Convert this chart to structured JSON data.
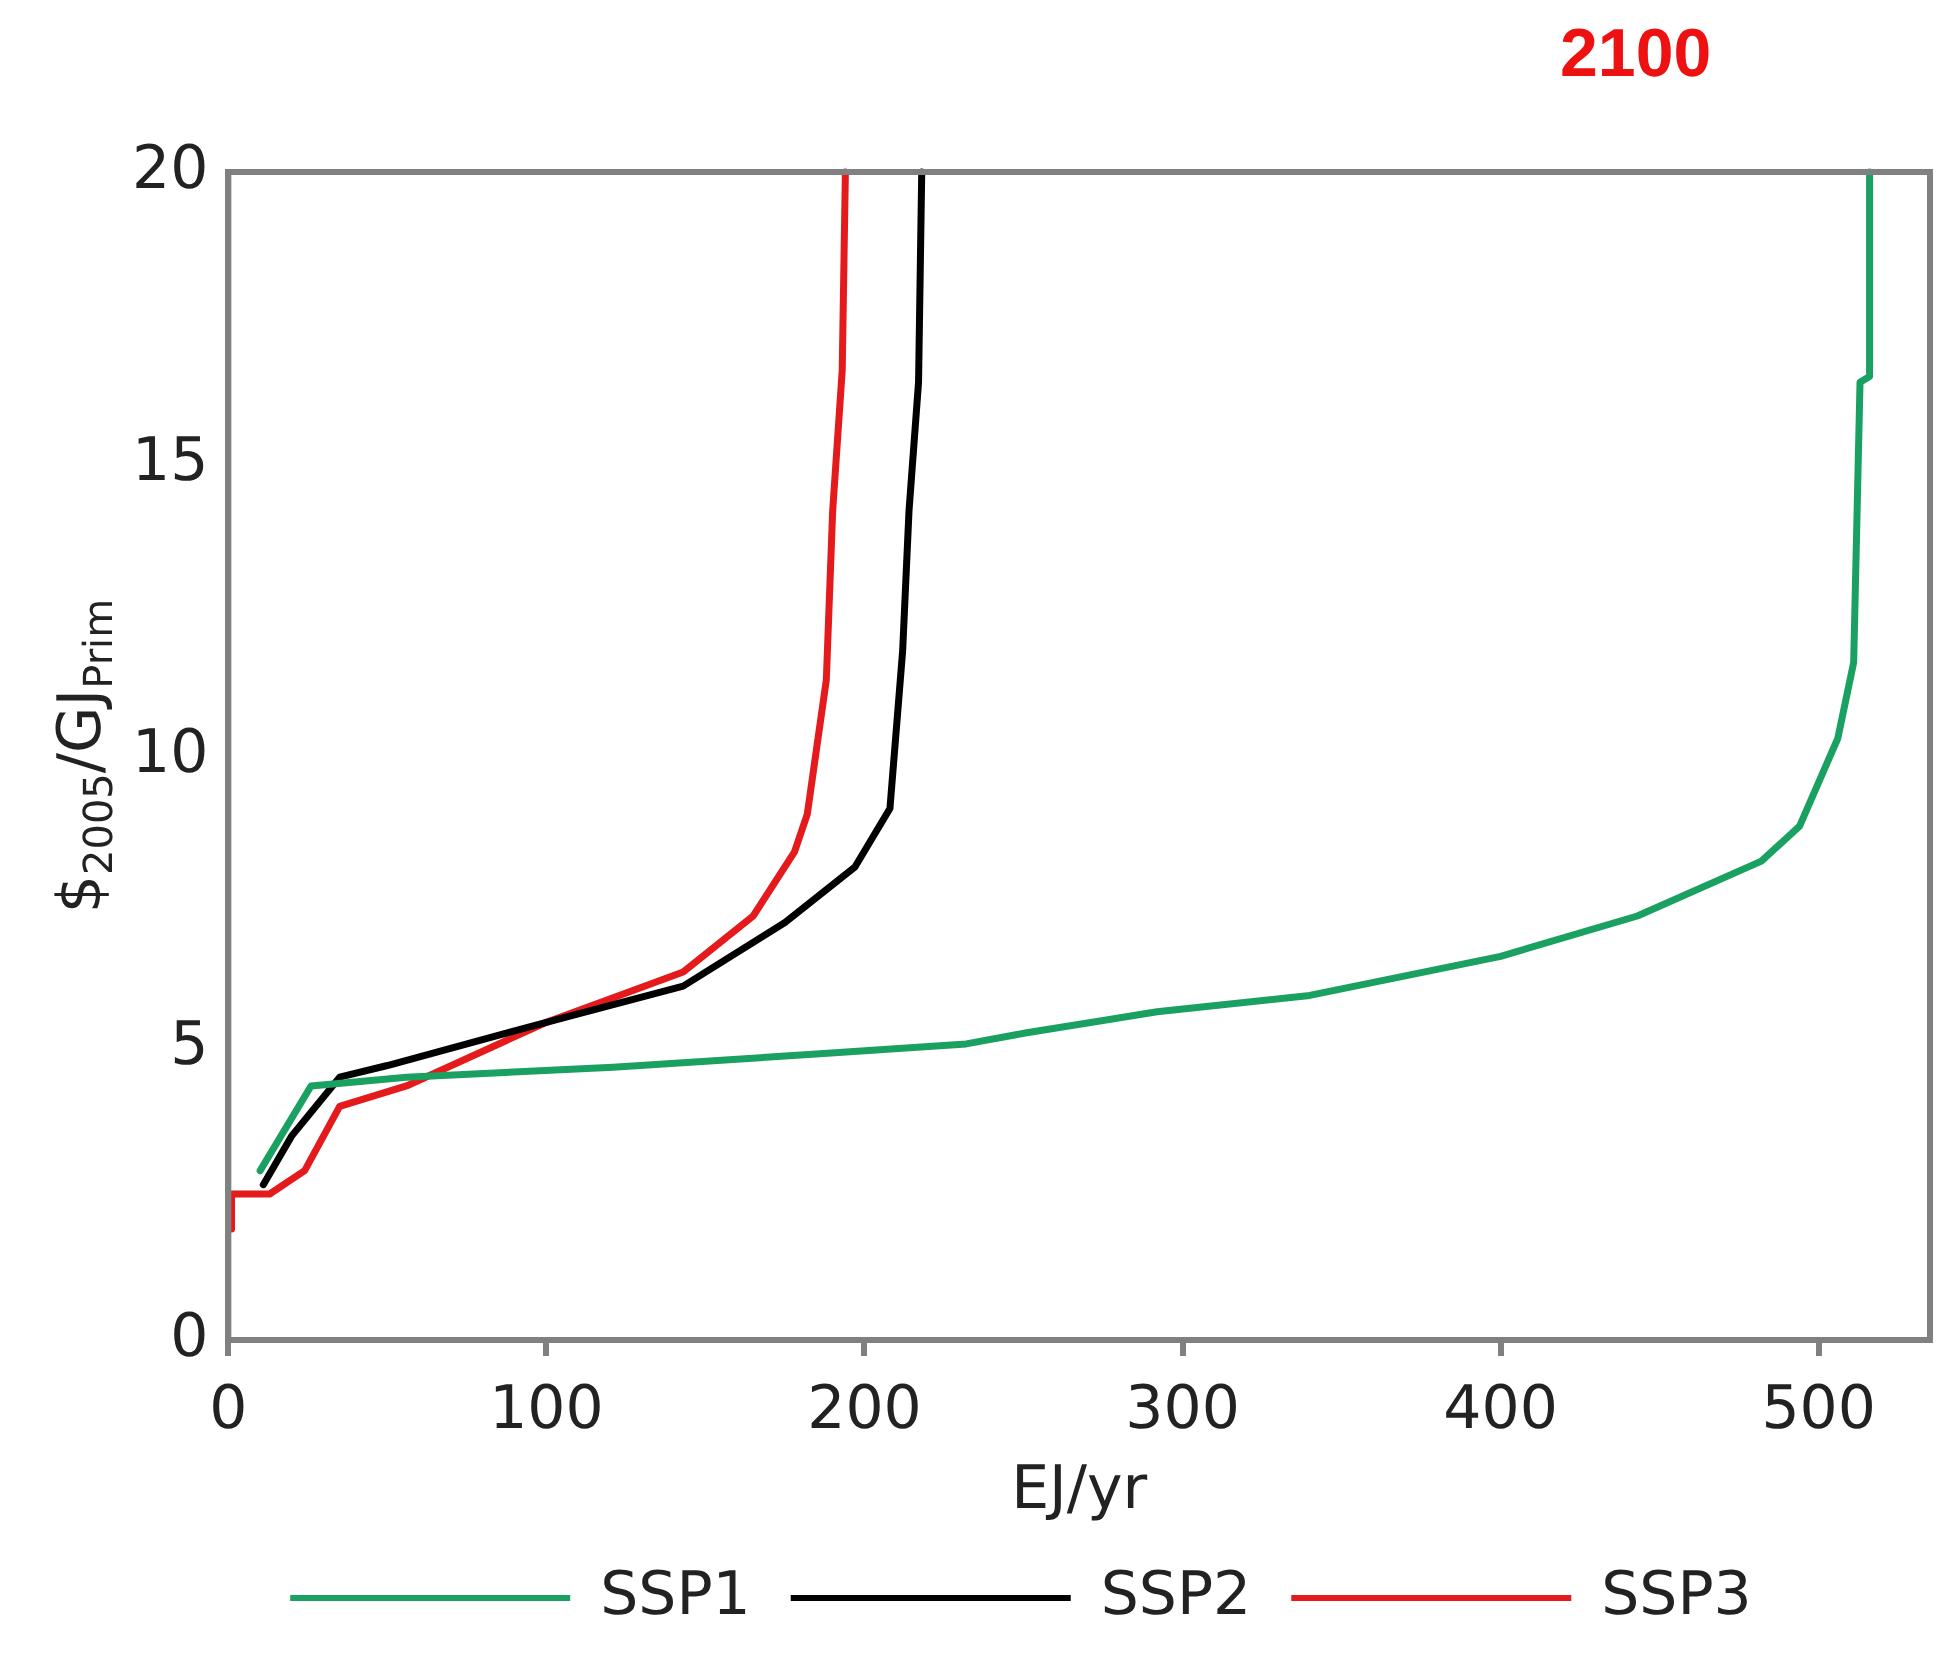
{
  "chart_data": {
    "type": "line",
    "title": "2100",
    "xlabel": "EJ/yr",
    "ylabel": "$$_{2005}$/GJ$_{Prim}$",
    "xlim": [
      0,
      535
    ],
    "xticks": [
      0,
      100,
      200,
      300,
      400,
      500
    ],
    "ylim": [
      0,
      20
    ],
    "yticks": [
      0,
      5,
      10,
      15,
      20
    ],
    "grid": false,
    "legend": "bottom",
    "marker": "none",
    "line_style": "solid",
    "series": [
      {
        "name": "SSP1",
        "color": "#1aa060",
        "x": [
          10,
          26,
          56,
          121,
          186,
          232,
          251,
          292,
          340,
          400,
          443,
          482,
          494,
          506,
          511,
          513,
          516,
          516
        ],
        "values": [
          2.9,
          4.35,
          4.5,
          4.67,
          4.9,
          5.07,
          5.26,
          5.62,
          5.9,
          6.57,
          7.26,
          8.2,
          8.8,
          10.3,
          11.6,
          16.4,
          16.5,
          20
        ]
      },
      {
        "name": "SSP2",
        "color": "#000000",
        "x": [
          11,
          20,
          35,
          50,
          100,
          143,
          175,
          197,
          208,
          212,
          214,
          217,
          218
        ],
        "values": [
          2.66,
          3.5,
          4.5,
          4.7,
          5.44,
          6.06,
          7.15,
          8.1,
          9.1,
          11.8,
          14.2,
          16.4,
          20
        ]
      },
      {
        "name": "SSP3",
        "color": "#e41a1c",
        "x": [
          1,
          1,
          13,
          24,
          35,
          56,
          100,
          143,
          165,
          178,
          182,
          188,
          190,
          193,
          194
        ],
        "values": [
          1.9,
          2.5,
          2.5,
          2.9,
          4.0,
          4.35,
          5.44,
          6.3,
          7.26,
          8.36,
          9.0,
          11.3,
          14.2,
          16.6,
          20
        ]
      }
    ]
  }
}
